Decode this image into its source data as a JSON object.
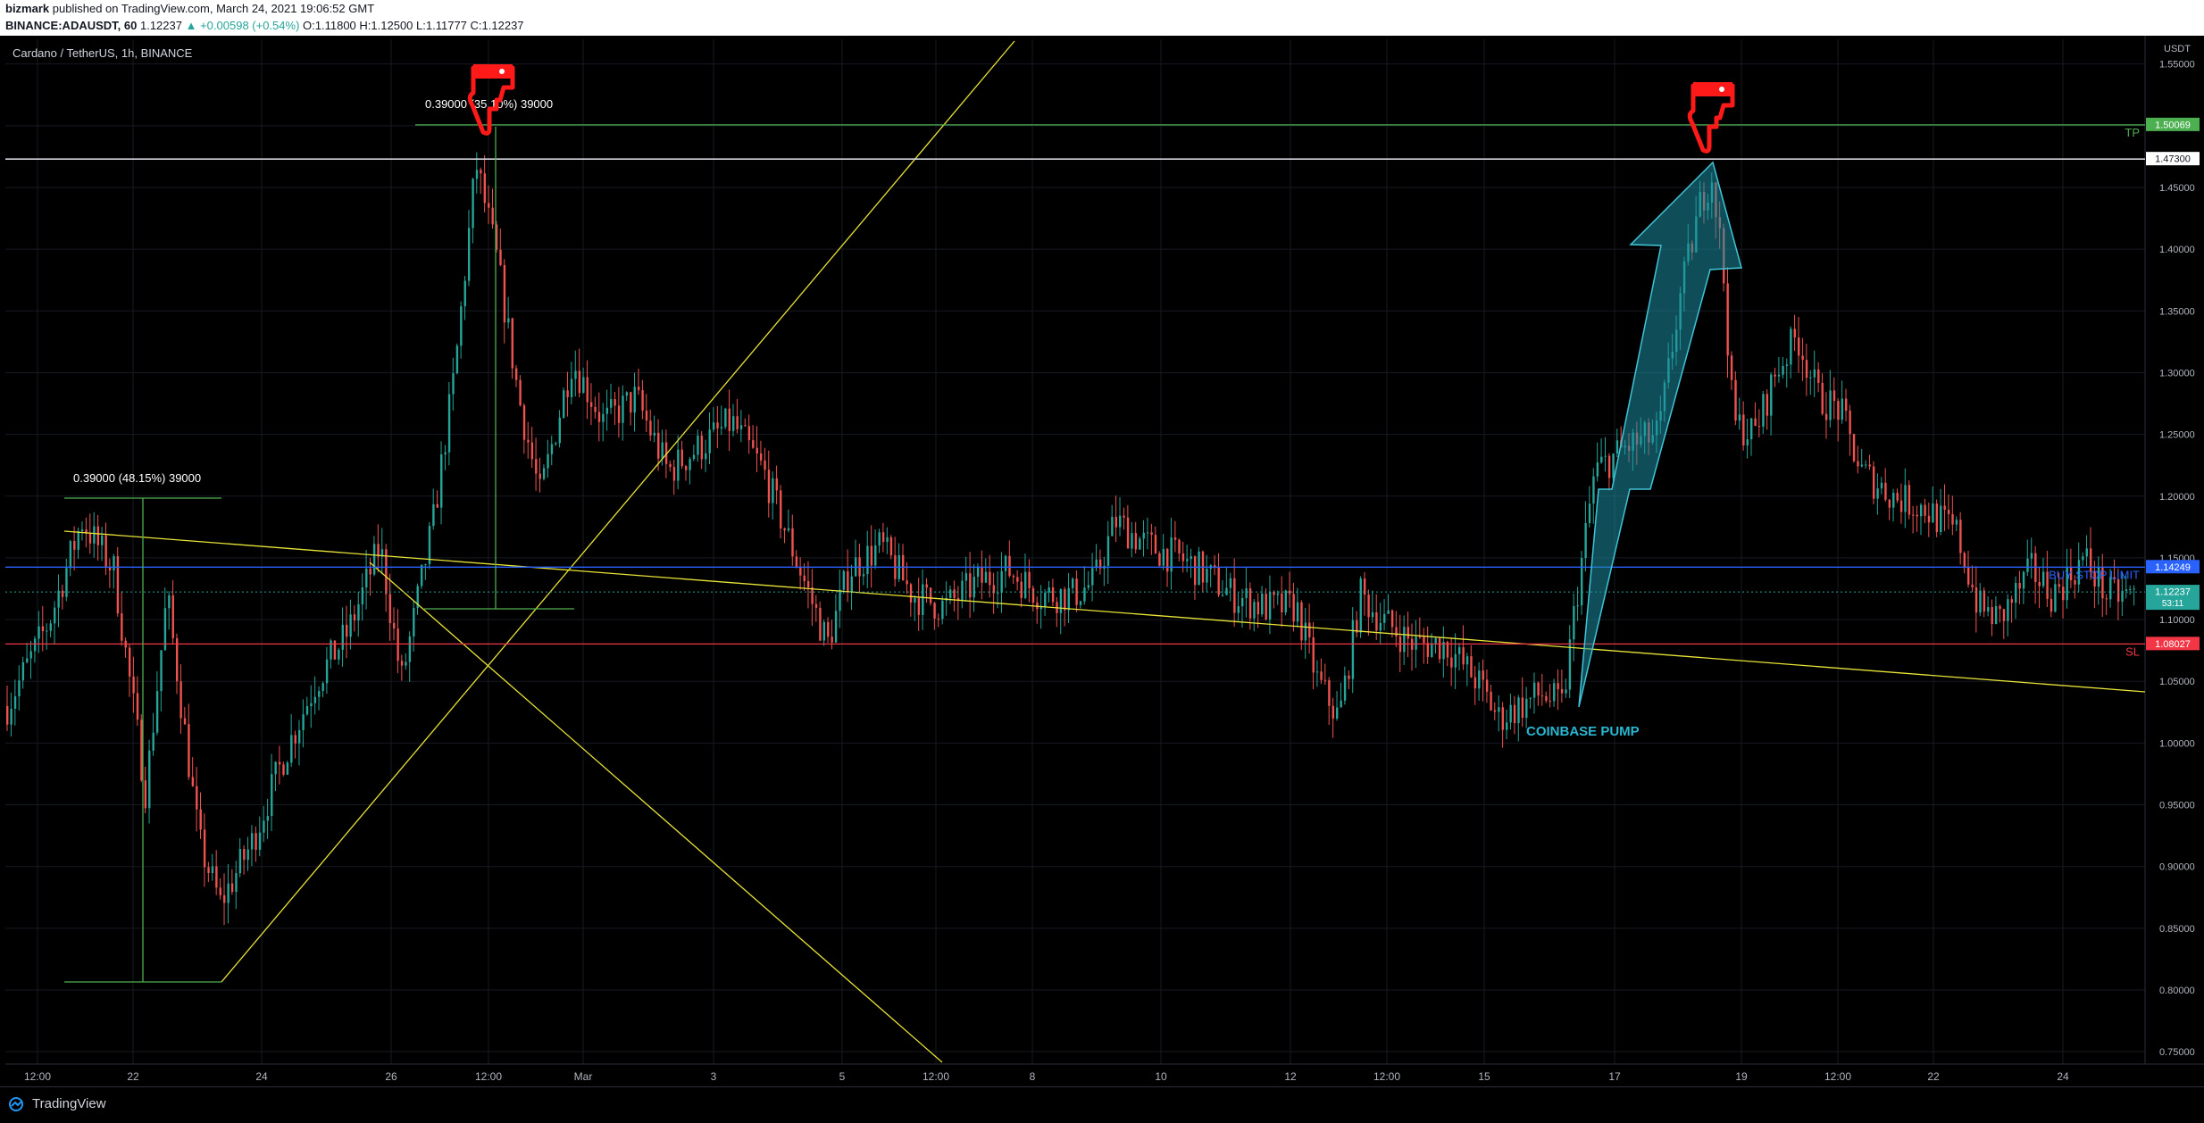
{
  "header": {
    "publisher": "bizmark",
    "published_text": "published on TradingView.com, March 24, 2021 19:06:52 GMT",
    "symbol": "BINANCE:ADAUSDT, 60",
    "last": "1.12237",
    "change": "▲ +0.00598 (+0.54%)",
    "open": "O:1.11800",
    "high": "H:1.12500",
    "low": "L:1.11777",
    "close": "C:1.12237"
  },
  "symbol_title": "Cardano / TetherUS, 1h, BINANCE",
  "footer": {
    "brand": "TradingView"
  },
  "colors": {
    "bull": "#26a69a",
    "bear": "#ef5350",
    "tp": "#4caf50",
    "sl": "#f23645",
    "entry": "#2962ff",
    "trend": "#e8e337",
    "arrow": "#1c8ea0",
    "hand": "#ff1a1a"
  },
  "chart_data": {
    "type": "candlestick",
    "currency": "USDT",
    "y_ticks": [
      "1.55000",
      "1.50000",
      "1.45000",
      "1.40000",
      "1.35000",
      "1.30000",
      "1.25000",
      "1.20000",
      "1.15000",
      "1.10000",
      "1.05000",
      "1.00000",
      "0.95000",
      "0.90000",
      "0.85000",
      "0.80000",
      "0.75000"
    ],
    "ylim": [
      0.74,
      1.57
    ],
    "x_ticks": [
      "12:00",
      "22",
      "24",
      "26",
      "12:00",
      "Mar",
      "3",
      "5",
      "12:00",
      "8",
      "10",
      "12",
      "12:00",
      "15",
      "17",
      "19",
      "12:00",
      "22",
      "24"
    ],
    "price_levels": [
      {
        "value": 1.50069,
        "label": "1.50069",
        "name": "TP"
      },
      {
        "value": 1.473,
        "label": "1.47300",
        "name": ""
      },
      {
        "value": 1.14249,
        "label": "1.14249",
        "name": "BUY STOP LIMIT"
      },
      {
        "value": 1.12237,
        "label": "1.12237",
        "name": "53:11"
      },
      {
        "value": 1.08027,
        "label": "1.08027",
        "name": "SL"
      }
    ],
    "annotations": [
      "0.39000 (48.15%) 39000",
      "0.39000 (35.10%) 39000",
      "COINBASE PUMP"
    ],
    "close_path": [
      [
        0,
        1.03
      ],
      [
        0.02,
        1.1
      ],
      [
        0.035,
        1.18
      ],
      [
        0.05,
        1.14
      ],
      [
        0.065,
        0.96
      ],
      [
        0.075,
        1.12
      ],
      [
        0.09,
        0.92
      ],
      [
        0.1,
        0.87
      ],
      [
        0.115,
        0.92
      ],
      [
        0.13,
        0.99
      ],
      [
        0.145,
        1.05
      ],
      [
        0.16,
        1.09
      ],
      [
        0.175,
        1.16
      ],
      [
        0.185,
        1.05
      ],
      [
        0.2,
        1.18
      ],
      [
        0.21,
        1.3
      ],
      [
        0.22,
        1.47
      ],
      [
        0.23,
        1.39
      ],
      [
        0.24,
        1.28
      ],
      [
        0.25,
        1.2
      ],
      [
        0.265,
        1.31
      ],
      [
        0.28,
        1.26
      ],
      [
        0.295,
        1.28
      ],
      [
        0.31,
        1.22
      ],
      [
        0.325,
        1.24
      ],
      [
        0.34,
        1.26
      ],
      [
        0.355,
        1.22
      ],
      [
        0.37,
        1.15
      ],
      [
        0.385,
        1.08
      ],
      [
        0.395,
        1.14
      ],
      [
        0.41,
        1.16
      ],
      [
        0.425,
        1.12
      ],
      [
        0.44,
        1.11
      ],
      [
        0.455,
        1.13
      ],
      [
        0.47,
        1.14
      ],
      [
        0.485,
        1.12
      ],
      [
        0.5,
        1.12
      ],
      [
        0.51,
        1.13
      ],
      [
        0.52,
        1.18
      ],
      [
        0.535,
        1.16
      ],
      [
        0.55,
        1.15
      ],
      [
        0.56,
        1.14
      ],
      [
        0.575,
        1.12
      ],
      [
        0.59,
        1.11
      ],
      [
        0.605,
        1.11
      ],
      [
        0.615,
        1.05
      ],
      [
        0.625,
        1.02
      ],
      [
        0.635,
        1.12
      ],
      [
        0.645,
        1.1
      ],
      [
        0.66,
        1.08
      ],
      [
        0.675,
        1.08
      ],
      [
        0.69,
        1.05
      ],
      [
        0.7,
        1.02
      ],
      [
        0.71,
        1.03
      ],
      [
        0.72,
        1.04
      ],
      [
        0.73,
        1.03
      ],
      [
        0.735,
        1.1
      ],
      [
        0.745,
        1.22
      ],
      [
        0.76,
        1.24
      ],
      [
        0.775,
        1.25
      ],
      [
        0.785,
        1.36
      ],
      [
        0.795,
        1.44
      ],
      [
        0.8,
        1.46
      ],
      [
        0.805,
        1.39
      ],
      [
        0.81,
        1.26
      ],
      [
        0.82,
        1.25
      ],
      [
        0.83,
        1.3
      ],
      [
        0.84,
        1.33
      ],
      [
        0.85,
        1.28
      ],
      [
        0.86,
        1.27
      ],
      [
        0.87,
        1.22
      ],
      [
        0.885,
        1.2
      ],
      [
        0.9,
        1.19
      ],
      [
        0.915,
        1.17
      ],
      [
        0.925,
        1.11
      ],
      [
        0.935,
        1.1
      ],
      [
        0.95,
        1.14
      ],
      [
        0.96,
        1.12
      ],
      [
        0.975,
        1.15
      ],
      [
        0.985,
        1.12
      ],
      [
        1.0,
        1.12
      ]
    ]
  }
}
